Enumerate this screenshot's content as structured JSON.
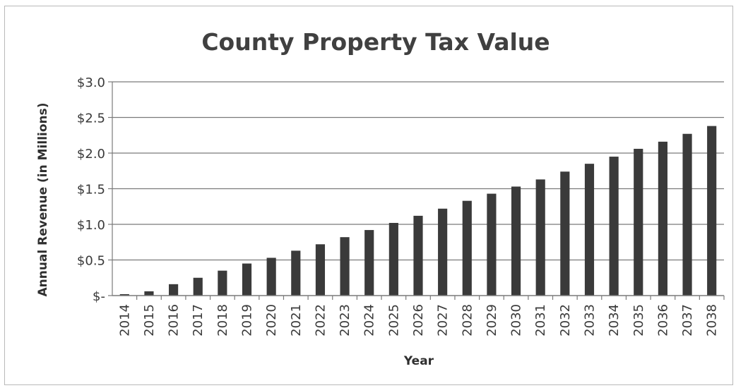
{
  "chart_data": {
    "type": "bar",
    "title": "County Property Tax Value",
    "xlabel": "Year",
    "ylabel": "Annual Revenue (in Millions)",
    "ylim": [
      0,
      3.0
    ],
    "yticks": [
      {
        "value": 0,
        "label": "$-"
      },
      {
        "value": 0.5,
        "label": "$0.5"
      },
      {
        "value": 1.0,
        "label": "$1.0"
      },
      {
        "value": 1.5,
        "label": "$1.5"
      },
      {
        "value": 2.0,
        "label": "$2.0"
      },
      {
        "value": 2.5,
        "label": "$2.5"
      },
      {
        "value": 3.0,
        "label": "$3.0"
      }
    ],
    "grid": true,
    "legend": "none",
    "bar_color": "#3a3a3a",
    "categories": [
      "2014",
      "2015",
      "2016",
      "2017",
      "2018",
      "2019",
      "2020",
      "2021",
      "2022",
      "2023",
      "2024",
      "2025",
      "2026",
      "2027",
      "2028",
      "2029",
      "2030",
      "2031",
      "2032",
      "2033",
      "2034",
      "2035",
      "2036",
      "2037",
      "2038"
    ],
    "values": [
      0.02,
      0.06,
      0.16,
      0.25,
      0.35,
      0.45,
      0.53,
      0.63,
      0.72,
      0.82,
      0.92,
      1.02,
      1.12,
      1.22,
      1.33,
      1.43,
      1.53,
      1.63,
      1.74,
      1.85,
      1.95,
      2.06,
      2.16,
      2.27,
      2.38
    ]
  }
}
